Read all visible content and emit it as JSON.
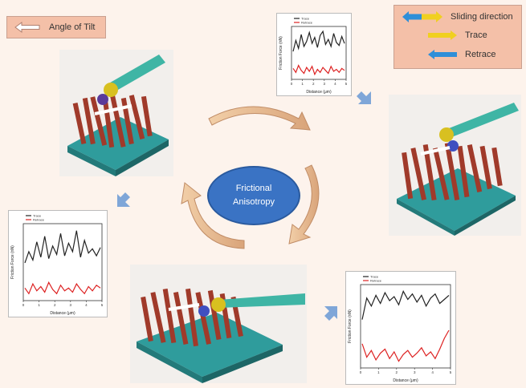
{
  "angle_key": {
    "label": "Angle of Tilt",
    "arrow_color": "#ffffff"
  },
  "legend": {
    "items": [
      {
        "label": "Sliding direction",
        "arrow": "double-arrow-icon"
      },
      {
        "label": "Trace",
        "arrow": "yellow-arrow-icon"
      },
      {
        "label": "Retrace",
        "arrow": "blue-arrow-icon"
      }
    ],
    "colors": {
      "trace": "#f0d020",
      "retrace": "#2f8fd8",
      "background": "#f4c0a8"
    }
  },
  "center": {
    "line1": "Frictional",
    "line2": "Anisotropy",
    "color": "#3a73c4"
  },
  "cycle_arrow_color": "#e0b090",
  "flow_arrow_color": "#7fa6d8",
  "chart_data": [
    {
      "type": "line",
      "xlabel": "Distance (μm)",
      "ylabel": "Friction Force (nN)",
      "series": [
        {
          "name": "Trace",
          "color": "#222222",
          "values": [
            3.1,
            4.2,
            3.4,
            4.8,
            3.6,
            4.1,
            5.0,
            3.9,
            4.5,
            3.5,
            4.7,
            5.1,
            3.8,
            4.3,
            3.6,
            4.9,
            4.0,
            3.7,
            4.6,
            3.9
          ]
        },
        {
          "name": "Retrace",
          "color": "#dd2222",
          "values": [
            1.4,
            1.0,
            1.7,
            1.2,
            0.9,
            1.5,
            1.1,
            1.6,
            0.8,
            1.3,
            1.0,
            1.5,
            1.2,
            0.9,
            1.6,
            1.1,
            1.3,
            1.0,
            1.4,
            1.2
          ]
        }
      ]
    },
    {
      "type": "line",
      "xlabel": "Distance (μm)",
      "ylabel": "Friction Force (nN)",
      "series": [
        {
          "name": "Trace",
          "color": "#222222",
          "values": [
            3.0,
            3.8,
            3.2,
            4.5,
            3.4,
            4.9,
            3.3,
            4.2,
            3.6,
            5.1,
            3.5,
            4.4,
            3.8,
            5.3,
            3.4,
            4.6,
            3.7,
            4.0,
            3.5,
            4.1
          ]
        },
        {
          "name": "Retrace",
          "color": "#dd2222",
          "values": [
            1.2,
            0.8,
            1.5,
            1.0,
            1.3,
            0.9,
            1.6,
            1.1,
            0.8,
            1.4,
            1.0,
            1.2,
            0.9,
            1.5,
            1.1,
            0.8,
            1.3,
            1.0,
            1.4,
            1.2
          ]
        }
      ]
    },
    {
      "type": "line",
      "xlabel": "Distance (μm)",
      "ylabel": "Friction Force (nN)",
      "series": [
        {
          "name": "Trace",
          "color": "#222222",
          "values": [
            2.0,
            3.6,
            3.0,
            3.8,
            3.2,
            4.0,
            3.4,
            3.7,
            3.1,
            4.1,
            3.5,
            3.9,
            3.3,
            3.8,
            3.0,
            3.6,
            3.9,
            3.2,
            3.5,
            3.8
          ]
        },
        {
          "name": "Retrace",
          "color": "#dd2222",
          "values": [
            0.2,
            -0.8,
            -0.3,
            -1.0,
            -0.5,
            -0.2,
            -0.9,
            -0.4,
            -1.1,
            -0.6,
            -0.3,
            -0.8,
            -0.5,
            -0.1,
            -0.7,
            -0.4,
            -0.9,
            -0.2,
            0.6,
            1.2
          ]
        }
      ]
    }
  ]
}
